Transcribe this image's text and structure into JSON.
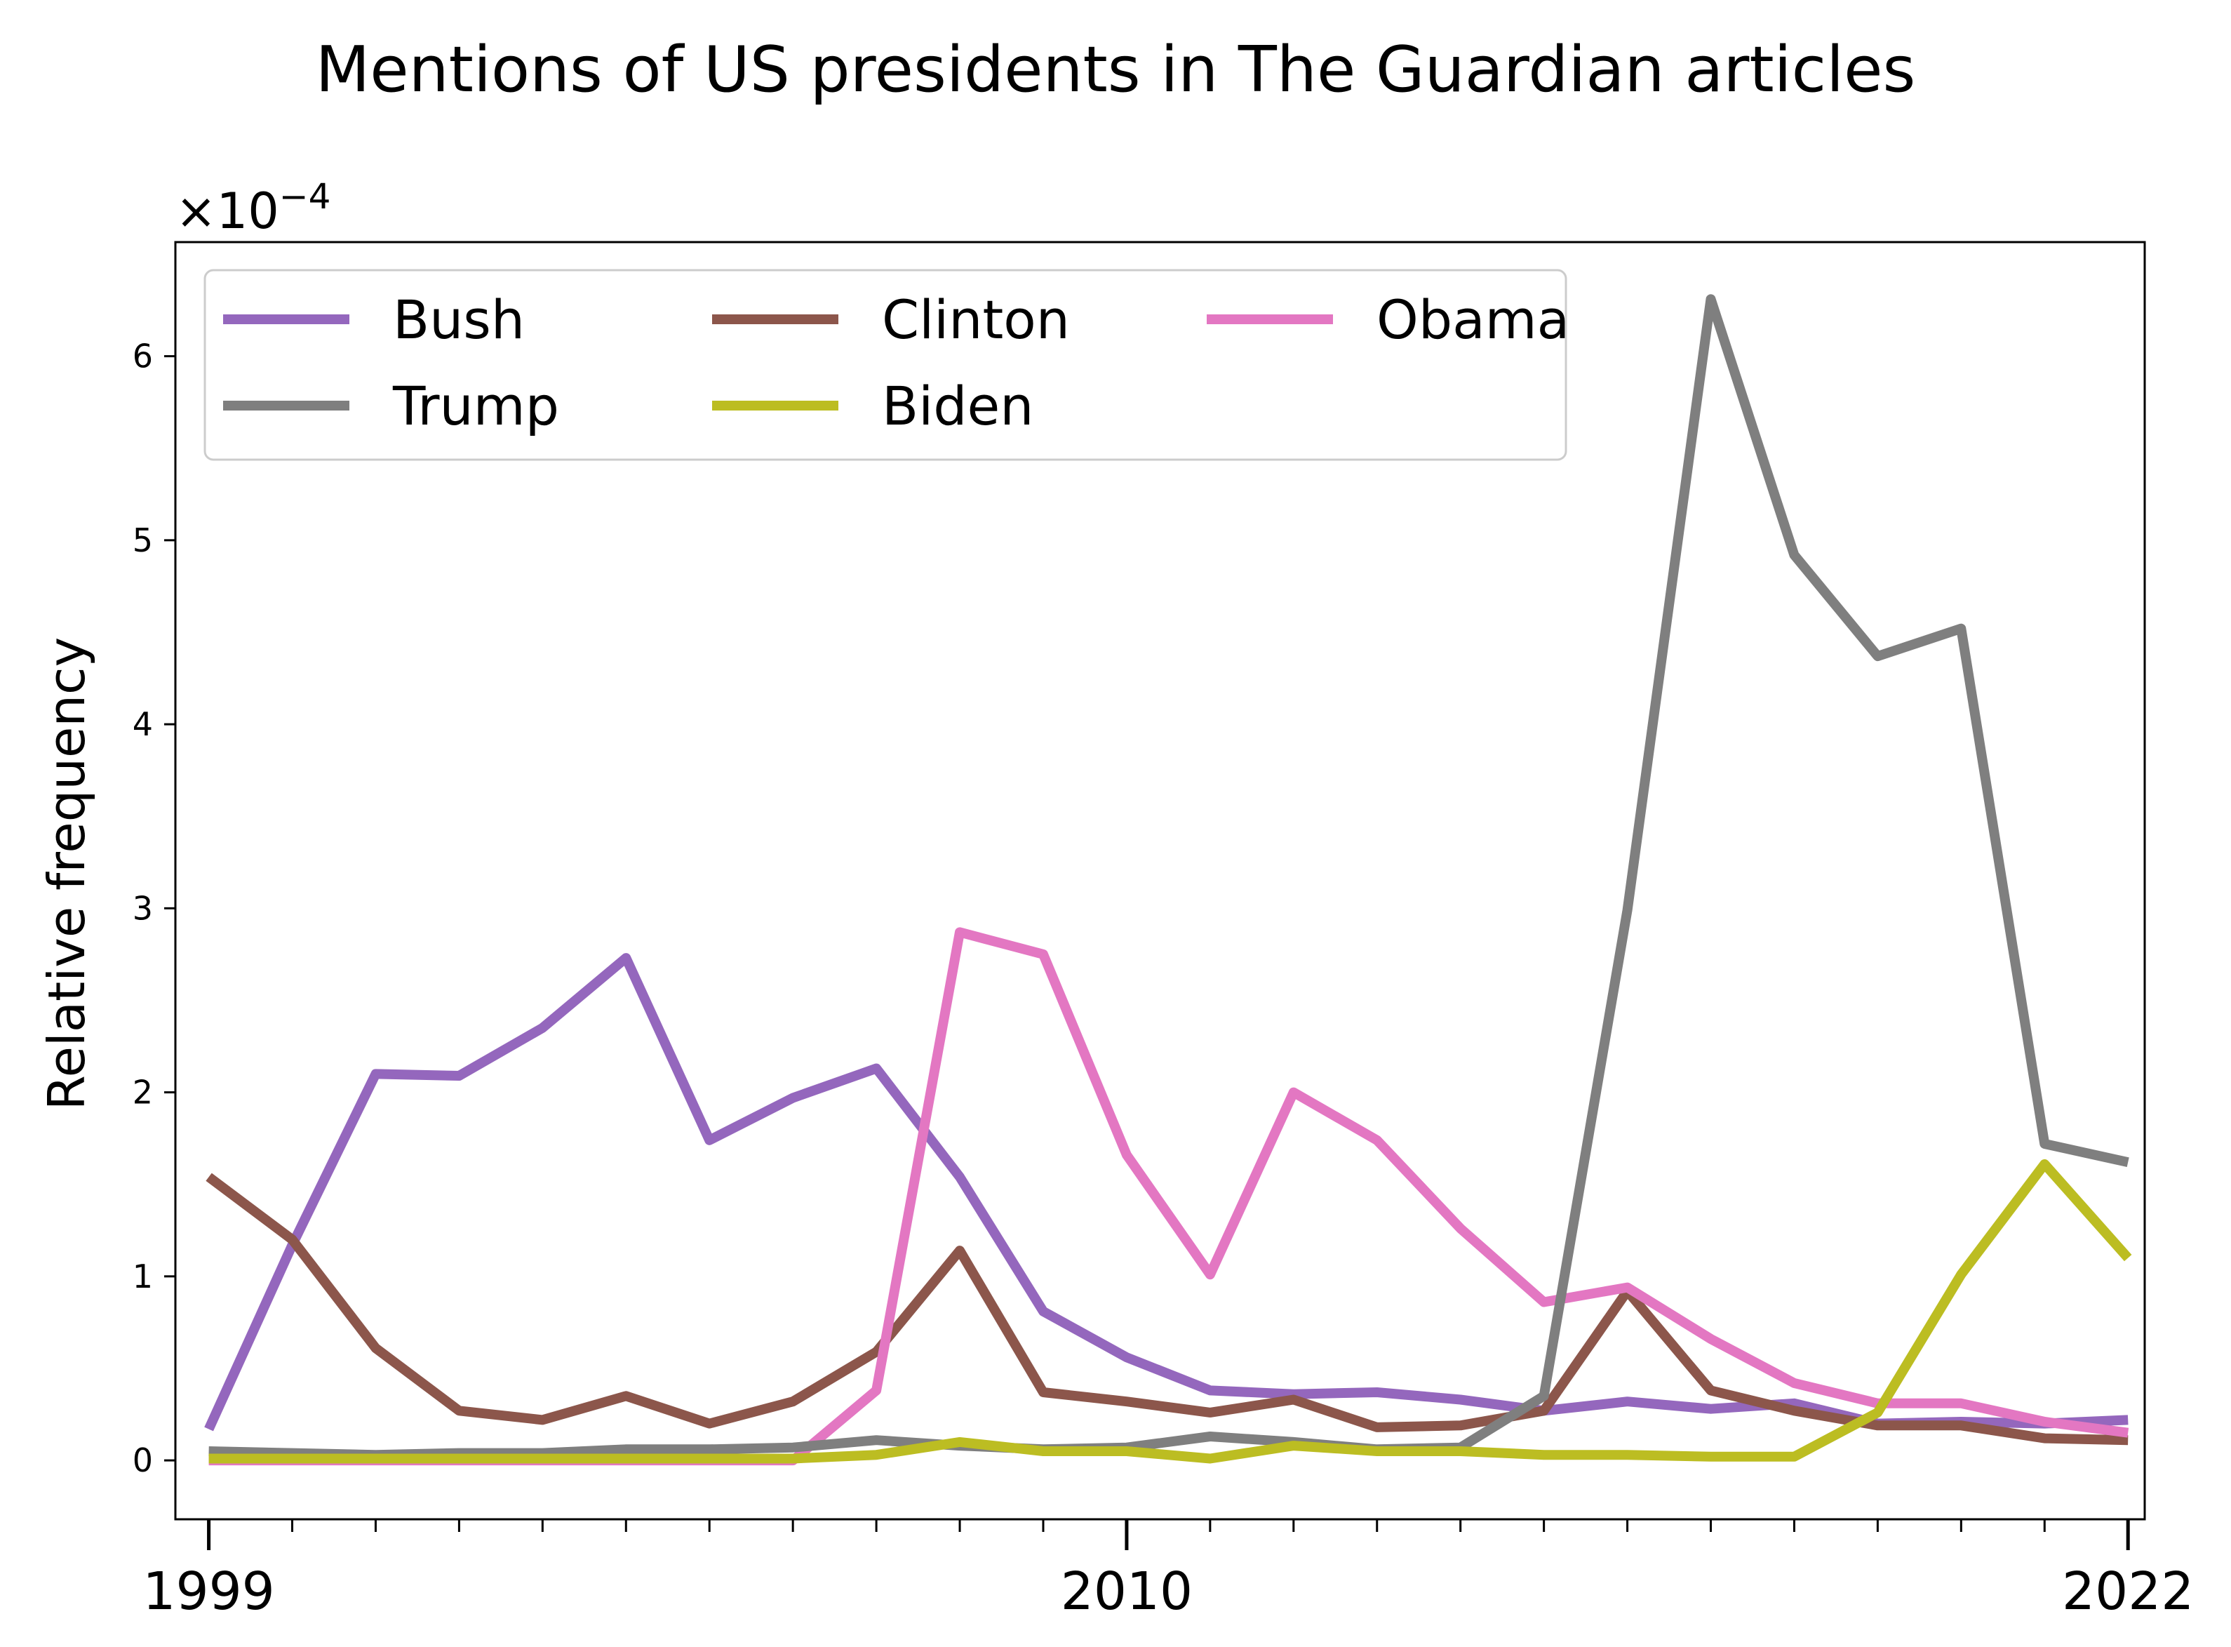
{
  "chart_data": {
    "type": "line",
    "title": "Mentions of US presidents in The Guardian articles",
    "xlabel": "",
    "ylabel": "Relative frequency",
    "y_exponent_label": "×10",
    "y_exponent_power": "−4",
    "xlim": [
      1998.6,
      2022.2
    ],
    "ylim": [
      -0.32,
      6.62
    ],
    "xticks_major": [
      1999,
      2010,
      2022
    ],
    "xticks_major_labels": [
      "1999",
      "2010",
      "2022"
    ],
    "yticks": [
      0,
      1,
      2,
      3,
      4,
      5,
      6
    ],
    "ytick_labels": [
      "0",
      "1",
      "2",
      "3",
      "4",
      "5",
      "6"
    ],
    "legend_position": "upper-left",
    "legend_columns": 3,
    "grid": false,
    "x": [
      1999,
      2000,
      2001,
      2002,
      2003,
      2004,
      2005,
      2006,
      2007,
      2008,
      2009,
      2010,
      2011,
      2012,
      2013,
      2014,
      2015,
      2016,
      2017,
      2018,
      2019,
      2020,
      2021,
      2022
    ],
    "series": [
      {
        "name": "Bush",
        "color": "#9467bd",
        "values": [
          0.17,
          1.17,
          2.1,
          2.09,
          2.35,
          2.73,
          1.74,
          1.97,
          2.13,
          1.54,
          0.81,
          0.56,
          0.38,
          0.36,
          0.37,
          0.33,
          0.27,
          0.32,
          0.28,
          0.31,
          0.2,
          0.21,
          0.2,
          0.22
        ]
      },
      {
        "name": "Clinton",
        "color": "#8c564b",
        "values": [
          1.54,
          1.2,
          0.61,
          0.27,
          0.22,
          0.35,
          0.2,
          0.32,
          0.59,
          1.14,
          0.37,
          0.32,
          0.26,
          0.33,
          0.18,
          0.19,
          0.27,
          0.92,
          0.38,
          0.27,
          0.19,
          0.19,
          0.12,
          0.11
        ]
      },
      {
        "name": "Obama",
        "color": "#e377c2",
        "values": [
          0.0,
          0.0,
          0.0,
          0.0,
          0.0,
          0.0,
          0.0,
          0.0,
          0.38,
          2.87,
          2.75,
          1.66,
          1.01,
          2.0,
          1.74,
          1.26,
          0.86,
          0.94,
          0.66,
          0.42,
          0.31,
          0.31,
          0.21,
          0.15
        ]
      },
      {
        "name": "Trump",
        "color": "#7f7f7f",
        "values": [
          0.05,
          0.04,
          0.03,
          0.04,
          0.04,
          0.06,
          0.06,
          0.07,
          0.11,
          0.08,
          0.06,
          0.07,
          0.13,
          0.1,
          0.06,
          0.07,
          0.35,
          2.99,
          6.31,
          4.92,
          4.37,
          4.52,
          1.72,
          1.62
        ]
      },
      {
        "name": "Biden",
        "color": "#bcbd22",
        "values": [
          0.01,
          0.01,
          0.01,
          0.01,
          0.01,
          0.01,
          0.01,
          0.01,
          0.03,
          0.1,
          0.05,
          0.05,
          0.01,
          0.08,
          0.05,
          0.05,
          0.03,
          0.03,
          0.02,
          0.02,
          0.26,
          1.01,
          1.61,
          1.1
        ]
      }
    ]
  }
}
